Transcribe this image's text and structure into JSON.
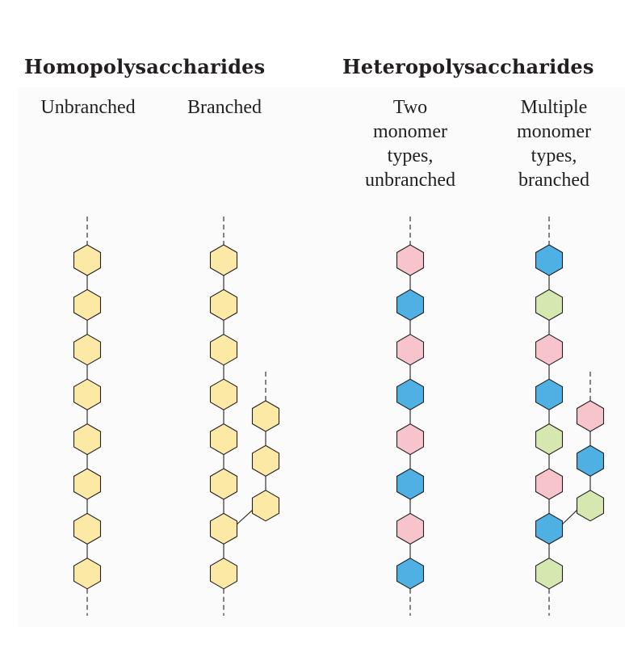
{
  "titles": {
    "homo": "Homopolysaccharides",
    "hetero": "Heteropolysaccharides"
  },
  "columns": {
    "c1": "Unbranched",
    "c2": "Branched",
    "c3": "Two\nmonomer\ntypes,\nunbranched",
    "c4": "Multiple\nmonomer\ntypes,\nbranched"
  },
  "colors": {
    "yellow": "#fde9a6",
    "pink": "#f7c4cc",
    "blue": "#4fb0e3",
    "green": "#d5e8b0",
    "stroke": "#231f20"
  },
  "chains": [
    {
      "id": "unbranched-chain",
      "monomers": [
        "yellow",
        "yellow",
        "yellow",
        "yellow",
        "yellow",
        "yellow",
        "yellow",
        "yellow"
      ]
    },
    {
      "id": "branched-main-chain",
      "monomers": [
        "yellow",
        "yellow",
        "yellow",
        "yellow",
        "yellow",
        "yellow",
        "yellow",
        "yellow"
      ]
    },
    {
      "id": "branched-side-chain",
      "monomers": [
        "yellow",
        "yellow",
        "yellow"
      ]
    },
    {
      "id": "two-type-chain",
      "monomers": [
        "pink",
        "blue",
        "pink",
        "blue",
        "pink",
        "blue",
        "pink",
        "blue"
      ]
    },
    {
      "id": "multi-type-main-chain",
      "monomers": [
        "blue",
        "green",
        "pink",
        "blue",
        "green",
        "pink",
        "blue",
        "green"
      ]
    },
    {
      "id": "multi-type-side-chain",
      "monomers": [
        "pink",
        "blue",
        "green"
      ]
    }
  ]
}
